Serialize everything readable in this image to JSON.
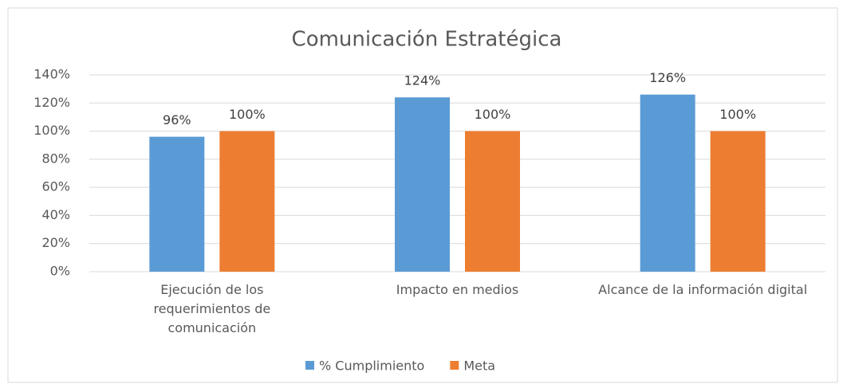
{
  "chart_data": {
    "type": "bar",
    "title": "Comunicación Estratégica",
    "categories": [
      "Ejecución de los requerimientos de comunicación",
      "Impacto en medios",
      "Alcance de la información digital"
    ],
    "series": [
      {
        "name": "% Cumplimiento",
        "color": "#5b9bd5",
        "values": [
          96,
          124,
          126
        ],
        "value_labels": [
          "96%",
          "124%",
          "126%"
        ]
      },
      {
        "name": "Meta",
        "color": "#ed7d31",
        "values": [
          100,
          100,
          100
        ],
        "value_labels": [
          "100%",
          "100%",
          "100%"
        ]
      }
    ],
    "ylim": [
      0,
      140
    ],
    "yticks": [
      {
        "value": 0,
        "label": "0%"
      },
      {
        "value": 20,
        "label": "20%"
      },
      {
        "value": 40,
        "label": "40%"
      },
      {
        "value": 60,
        "label": "60%"
      },
      {
        "value": 80,
        "label": "80%"
      },
      {
        "value": 100,
        "label": "100%"
      },
      {
        "value": 120,
        "label": "120%"
      },
      {
        "value": 140,
        "label": "140%"
      }
    ],
    "grid": true,
    "legend": "bottom"
  }
}
